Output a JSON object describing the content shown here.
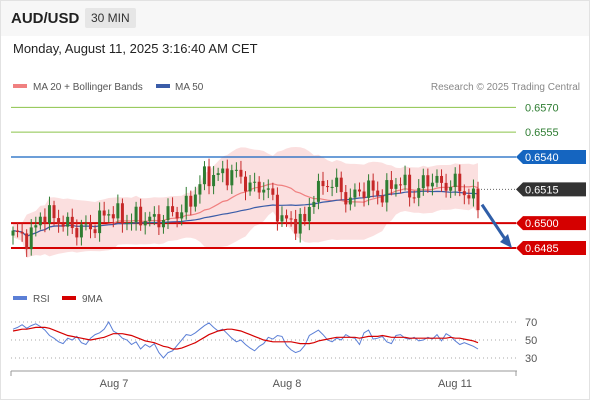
{
  "header": {
    "symbol": "AUD/USD",
    "timeframe": "30 MIN",
    "datetime": "Monday, August 11, 2025 3:16:40 AM CET"
  },
  "legend": {
    "ma20_label": "MA 20 + Bollinger Bands",
    "ma50_label": "MA 50",
    "credit": "Research © 2025 Trading Central",
    "rsi_label": "RSI",
    "ma9_label": "9MA"
  },
  "colors": {
    "bull": "#2e7d32",
    "bear": "#c62828",
    "ma20": "#f08080",
    "ma50": "#3a5ca8",
    "band_fill": "#fbdcdc",
    "resistance": "#8bc34a",
    "pivot_line": "#1565c0",
    "support": "#d50000",
    "current": "#333333",
    "arrow": "#2f5ea8",
    "rsi": "#5b7fd6",
    "rsi_ma": "#d50000"
  },
  "chart_data": {
    "type": "candlestick",
    "price_range": [
      0.6475,
      0.658
    ],
    "x_labels": [
      "Aug 7",
      "Aug 8",
      "Aug 11"
    ],
    "levels": [
      {
        "value": 0.657,
        "label": "0.6570",
        "kind": "resistance"
      },
      {
        "value": 0.6555,
        "label": "0.6555",
        "kind": "resistance"
      },
      {
        "value": 0.654,
        "label": "0.6540",
        "kind": "pivot"
      },
      {
        "value": 0.6515,
        "label": "0.6515",
        "kind": "current"
      },
      {
        "value": 0.65,
        "label": "0.6500",
        "kind": "support"
      },
      {
        "value": 0.6485,
        "label": "0.6485",
        "kind": "support"
      }
    ],
    "forecast": {
      "from": 0.651,
      "to": 0.6485,
      "direction": "down"
    },
    "rsi": {
      "range": [
        20,
        80
      ],
      "levels": [
        70,
        50,
        30
      ],
      "rsi_values": [
        62,
        64,
        67,
        63,
        66,
        68,
        65,
        61,
        55,
        52,
        48,
        46,
        52,
        50,
        54,
        47,
        45,
        52,
        56,
        58,
        62,
        70,
        60,
        57,
        52,
        50,
        45,
        48,
        40,
        45,
        42,
        46,
        36,
        30,
        36,
        38,
        44,
        50,
        56,
        55,
        58,
        62,
        66,
        69,
        64,
        60,
        62,
        57,
        52,
        48,
        50,
        45,
        41,
        38,
        43,
        46,
        53,
        51,
        55,
        54,
        44,
        39,
        36,
        38,
        44,
        55,
        58,
        61,
        56,
        50,
        48,
        52,
        50,
        56,
        53,
        52,
        45,
        58,
        61,
        51,
        52,
        54,
        48,
        46,
        55,
        56,
        52,
        51,
        53,
        49,
        50,
        53,
        51,
        56,
        49,
        57,
        54,
        49,
        45,
        47,
        45,
        43,
        40
      ],
      "ma9_values": [
        60,
        61,
        62,
        62,
        63,
        64,
        64,
        64,
        63,
        61,
        59,
        57,
        55,
        54,
        53,
        52,
        51,
        50,
        51,
        52,
        53,
        55,
        57,
        57,
        57,
        56,
        55,
        53,
        51,
        49,
        48,
        47,
        45,
        43,
        42,
        40,
        40,
        41,
        43,
        45,
        47,
        50,
        53,
        56,
        58,
        60,
        61,
        62,
        62,
        61,
        60,
        58,
        56,
        54,
        52,
        50,
        49,
        48,
        48,
        48,
        48,
        48,
        47,
        46,
        46,
        46,
        47,
        49,
        50,
        51,
        52,
        53,
        53,
        53,
        53,
        53,
        52,
        53,
        54,
        54,
        54,
        55,
        54,
        53,
        53,
        53,
        53,
        52,
        52,
        52,
        52,
        52,
        52,
        52,
        52,
        52,
        53,
        52,
        52,
        51,
        50,
        49,
        47
      ]
    }
  }
}
